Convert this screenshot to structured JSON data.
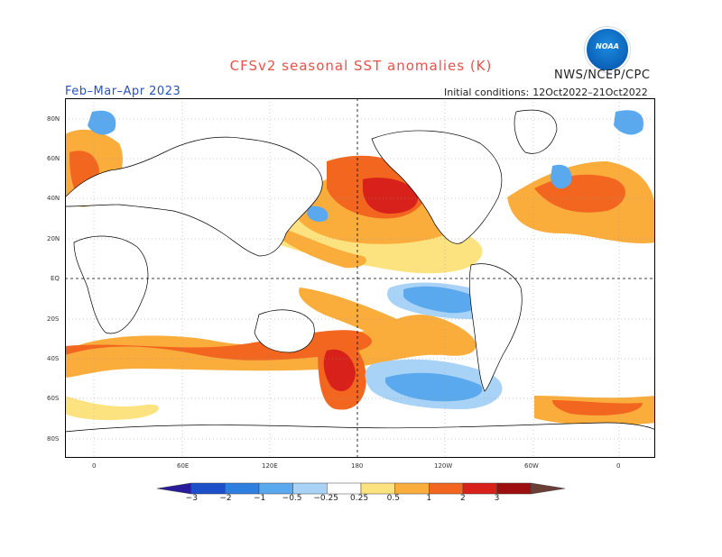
{
  "header": {
    "title": "CFSv2 seasonal SST anomalies (K)",
    "org": "NWS/NCEP/CPC",
    "season": "Feb–Mar–Apr 2023",
    "ic_label": "Initial conditions:",
    "ic_value": "12Oct2022–21Oct2022",
    "logo_text": "NOAA"
  },
  "map": {
    "lat_labels": [
      "80N",
      "60N",
      "40N",
      "20N",
      "EQ",
      "20S",
      "40S",
      "60S",
      "80S"
    ],
    "lon_labels": [
      "0",
      "60E",
      "120E",
      "180",
      "120W",
      "60W",
      "0"
    ]
  },
  "colorbar": {
    "labels": [
      "−3",
      "−2",
      "−1",
      "−0.5",
      "−0.25",
      "0.25",
      "0.5",
      "1",
      "2",
      "3"
    ],
    "colors": [
      "#2a1a9c",
      "#1c4fc8",
      "#2f7fe0",
      "#5aa9ef",
      "#a8d3f7",
      "#ffffff",
      "#fde37f",
      "#fbad3c",
      "#f2661f",
      "#d8211b",
      "#9d0f0f",
      "#6b3f35"
    ]
  }
}
